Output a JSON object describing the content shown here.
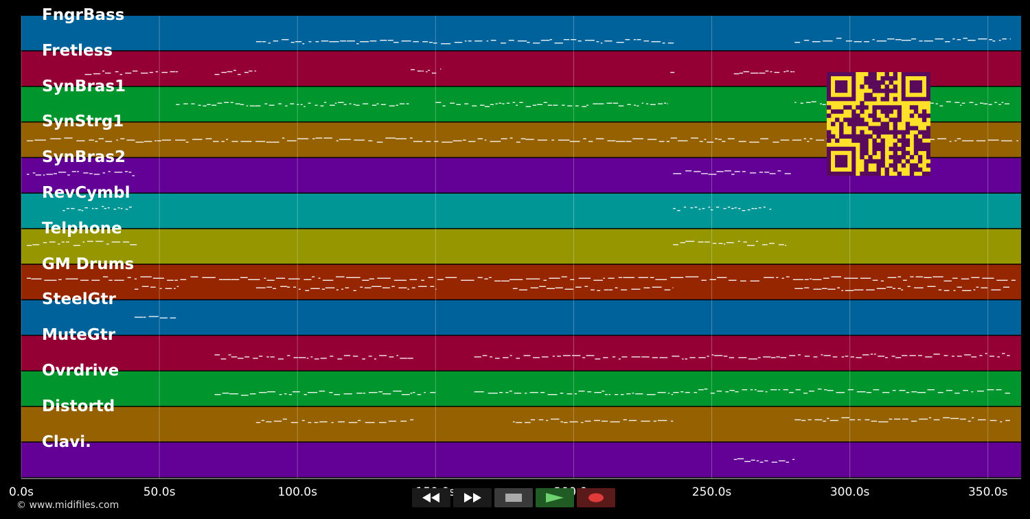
{
  "tracks": [
    {
      "name": "FngrBass",
      "color": "#00629a"
    },
    {
      "name": "Fretless",
      "color": "#940033"
    },
    {
      "name": "SynBras1",
      "color": "#00962d"
    },
    {
      "name": "SynStrg1",
      "color": "#966100"
    },
    {
      "name": "SynBras2",
      "color": "#630096"
    },
    {
      "name": "RevCymbl",
      "color": "#009696"
    },
    {
      "name": "Telphone",
      "color": "#969600"
    },
    {
      "name": "GM Drums",
      "color": "#962600"
    },
    {
      "name": "SteelGtr",
      "color": "#00629a"
    },
    {
      "name": "MuteGtr",
      "color": "#940033"
    },
    {
      "name": "Ovrdrive",
      "color": "#00962d"
    },
    {
      "name": "Distortd",
      "color": "#966100"
    },
    {
      "name": "Clavi.",
      "color": "#630096"
    }
  ],
  "timeline": {
    "ticks": [
      "0.0s",
      "50.0s",
      "100.0s",
      "150.0s",
      "200.0s",
      "250.0s",
      "300.0s",
      "350.0s"
    ],
    "tick_values": [
      0,
      50,
      100,
      150,
      200,
      250,
      300,
      350
    ],
    "max_seconds": 362
  },
  "transport": {
    "rewind_icon": "rewind-icon",
    "forward_icon": "fast-forward-icon",
    "stop_icon": "stop-icon",
    "play_icon": "play-icon",
    "record_icon": "record-icon"
  },
  "copyright": "© www.midifiles.com",
  "qr_code": {
    "color": "#ffe12a",
    "dark": "#5a0a5a"
  }
}
